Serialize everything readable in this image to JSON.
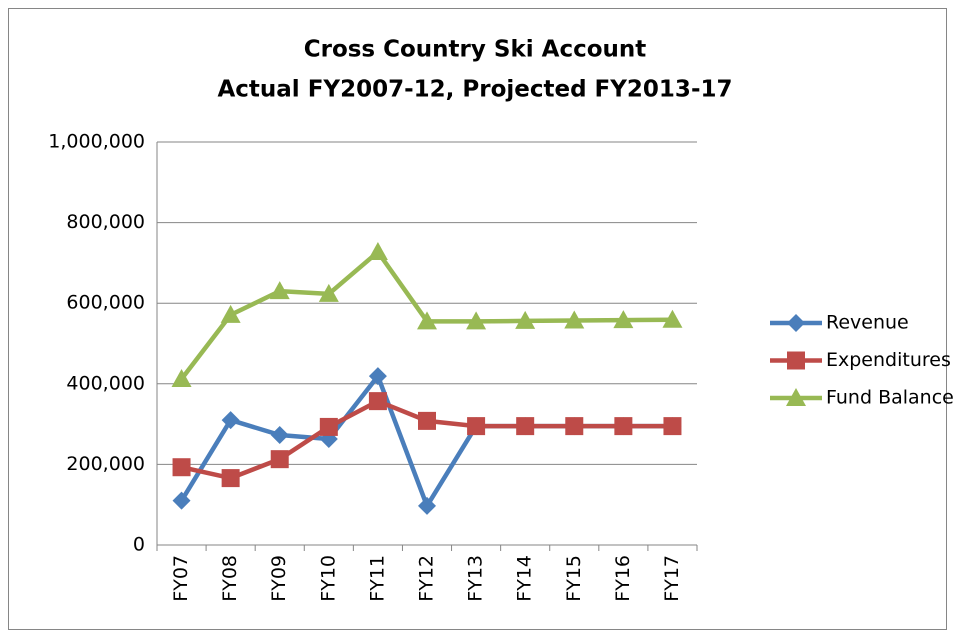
{
  "chart_data": {
    "type": "line",
    "title": [
      "Cross Country Ski Account",
      "Actual FY2007-12, Projected FY2013-17"
    ],
    "categories": [
      "FY07",
      "FY08",
      "FY09",
      "FY10",
      "FY11",
      "FY12",
      "FY13",
      "FY14",
      "FY15",
      "FY16",
      "FY17"
    ],
    "series": [
      {
        "name": "Revenue",
        "color": "#4a7ebb",
        "marker": "diamond",
        "values": [
          110000,
          310000,
          273000,
          263000,
          419000,
          97000,
          295000,
          295000,
          295000,
          295000,
          295000
        ]
      },
      {
        "name": "Expenditures",
        "color": "#be4b48",
        "marker": "square",
        "values": [
          193000,
          166000,
          213000,
          293000,
          357000,
          308000,
          295000,
          295000,
          295000,
          295000,
          295000
        ]
      },
      {
        "name": "Fund Balance",
        "color": "#98b954",
        "marker": "triangle",
        "values": [
          412000,
          571000,
          630000,
          623000,
          727000,
          555000,
          555000,
          556000,
          557000,
          558000,
          559000
        ]
      }
    ],
    "ylim": [
      0,
      1000000
    ],
    "yticks": [
      0,
      {
        "value": 200000,
        "label": "200,000"
      },
      {
        "value": 400000,
        "label": "400,000"
      },
      {
        "value": 600000,
        "label": "600,000"
      },
      {
        "value": 800000,
        "label": "800,000"
      },
      {
        "value": 1000000,
        "label": "1,000,000"
      }
    ],
    "grid": true,
    "legend": "right"
  }
}
